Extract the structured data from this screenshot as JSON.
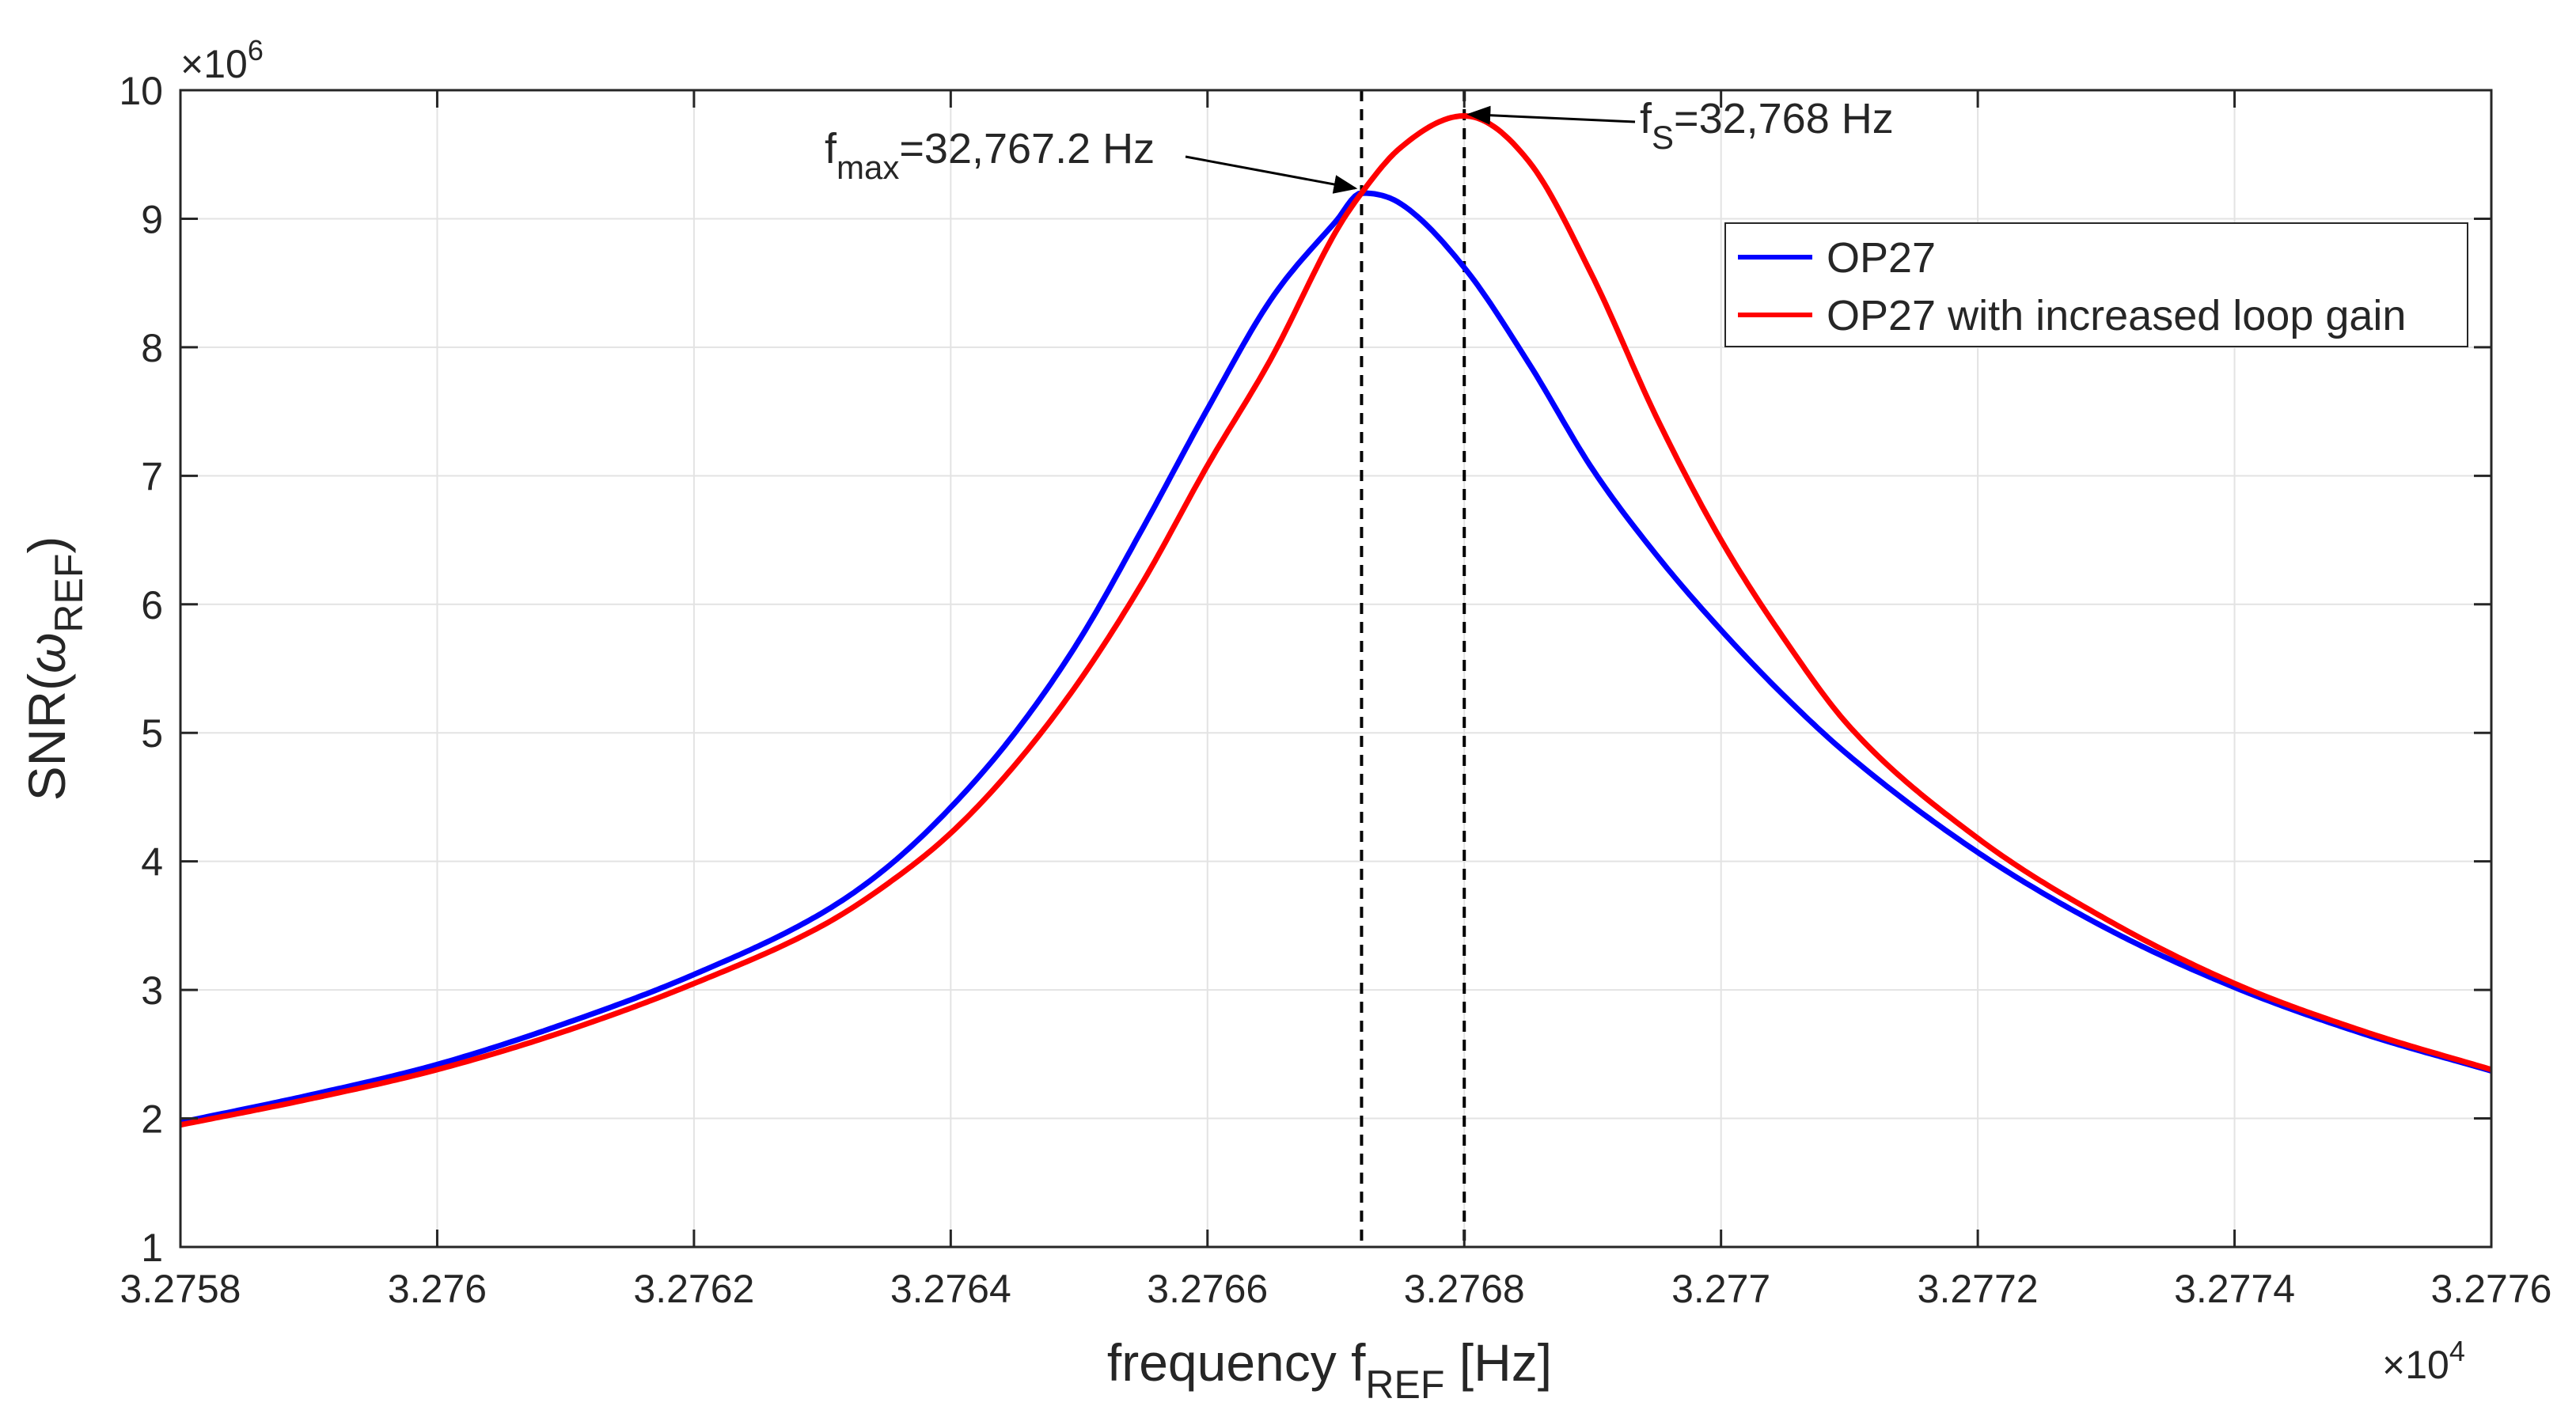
{
  "chart_data": {
    "type": "line",
    "title": "",
    "xlabel": {
      "main": "frequency f",
      "sub": "REF",
      "unit": " [Hz]"
    },
    "ylabel": {
      "main": "SNR(",
      "greek": "ω",
      "sub": "REF",
      "close": ")"
    },
    "x_multiplier": {
      "base": "×10",
      "exp": "4"
    },
    "y_multiplier": {
      "base": "×10",
      "exp": "6"
    },
    "xlim": [
      32758,
      32776
    ],
    "ylim": [
      1,
      10
    ],
    "x_ticks": [
      32758,
      32760,
      32762,
      32764,
      32766,
      32768,
      32770,
      32772,
      32774,
      32776
    ],
    "x_tick_labels": [
      "3.2758",
      "3.276",
      "3.2762",
      "3.2764",
      "3.2766",
      "3.2768",
      "3.277",
      "3.2772",
      "3.2774",
      "3.2776"
    ],
    "y_ticks": [
      1,
      2,
      3,
      4,
      5,
      6,
      7,
      8,
      9,
      10
    ],
    "y_tick_labels": [
      "1",
      "2",
      "3",
      "4",
      "5",
      "6",
      "7",
      "8",
      "9",
      "10"
    ],
    "grid": true,
    "legend_position": "top-right",
    "series": [
      {
        "name": "OP27",
        "color": "#0000ff",
        "x": [
          32758,
          32759,
          32760,
          32761,
          32762,
          32763,
          32763.5,
          32764,
          32764.5,
          32765,
          32765.5,
          32766,
          32766.5,
          32767,
          32767.2,
          32767.5,
          32768,
          32768.5,
          32769,
          32769.5,
          32770,
          32770.5,
          32771,
          32772,
          32773,
          32774,
          32775,
          32776
        ],
        "values": [
          1.97,
          2.18,
          2.42,
          2.74,
          3.12,
          3.6,
          3.95,
          4.42,
          5.0,
          5.72,
          6.6,
          7.52,
          8.38,
          8.98,
          9.2,
          9.12,
          8.62,
          7.88,
          7.05,
          6.38,
          5.8,
          5.28,
          4.82,
          4.07,
          3.48,
          3.02,
          2.66,
          2.37
        ]
      },
      {
        "name": "OP27 with increased loop gain",
        "color": "#ff0000",
        "x": [
          32758,
          32759,
          32760,
          32761,
          32762,
          32763,
          32763.5,
          32764,
          32764.5,
          32765,
          32765.5,
          32766,
          32766.5,
          32767,
          32767.2,
          32767.5,
          32768,
          32768.5,
          32769,
          32769.5,
          32770,
          32770.5,
          32771,
          32772,
          32773,
          32774,
          32775,
          32776
        ],
        "values": [
          1.95,
          2.15,
          2.38,
          2.68,
          3.05,
          3.5,
          3.82,
          4.22,
          4.75,
          5.4,
          6.18,
          7.08,
          7.92,
          8.9,
          9.2,
          9.55,
          9.8,
          9.45,
          8.55,
          7.45,
          6.5,
          5.72,
          5.05,
          4.18,
          3.55,
          3.05,
          2.68,
          2.38
        ]
      }
    ],
    "reference_lines": [
      {
        "x": 32767.2,
        "style": "dashed",
        "color": "#000000"
      },
      {
        "x": 32768,
        "style": "dashed",
        "color": "#000000"
      }
    ],
    "annotations": [
      {
        "name": "fmax",
        "main": "f",
        "sub": "max",
        "rest": "=32,767.2 Hz",
        "target_x": 32767.2,
        "target_y": 9.2
      },
      {
        "name": "fs",
        "main": "f",
        "sub": "S",
        "rest": "=32,768 Hz",
        "target_x": 32768,
        "target_y": 9.8
      }
    ]
  }
}
